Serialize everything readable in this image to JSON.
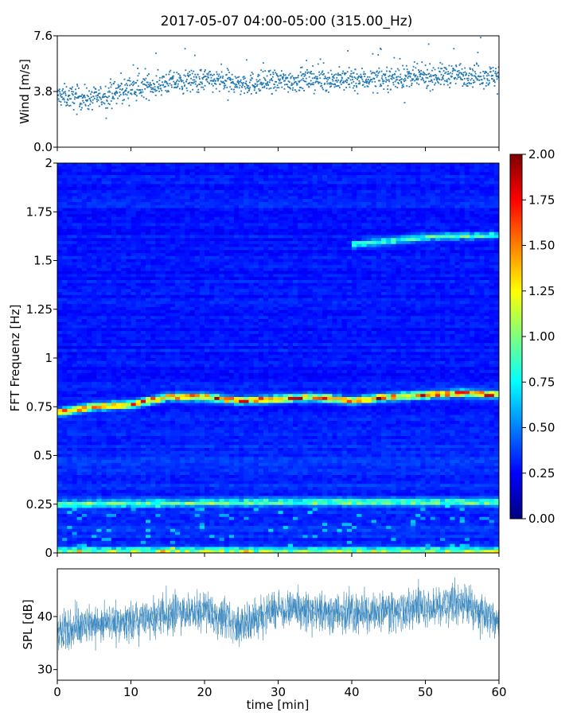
{
  "title": "2017-05-07 04:00-05:00 (315.00_Hz)",
  "chart_data": [
    {
      "id": "wind",
      "type": "scatter",
      "ylabel": "Wind [m/s]",
      "xlim": [
        0,
        60
      ],
      "ylim": [
        0,
        7.6
      ],
      "yticks": [
        0.0,
        3.8,
        7.6
      ],
      "ytick_labels": [
        "0.0",
        "3.8",
        "7.6"
      ],
      "color": "#1f77b4",
      "trend": [
        {
          "x": 0,
          "y": 3.5
        },
        {
          "x": 5,
          "y": 3.3
        },
        {
          "x": 10,
          "y": 4.0
        },
        {
          "x": 15,
          "y": 4.4
        },
        {
          "x": 20,
          "y": 4.6
        },
        {
          "x": 25,
          "y": 4.3
        },
        {
          "x": 30,
          "y": 4.5
        },
        {
          "x": 35,
          "y": 4.6
        },
        {
          "x": 40,
          "y": 4.6
        },
        {
          "x": 45,
          "y": 4.7
        },
        {
          "x": 50,
          "y": 4.8
        },
        {
          "x": 55,
          "y": 5.0
        },
        {
          "x": 60,
          "y": 4.8
        }
      ]
    },
    {
      "id": "spectrogram",
      "type": "heatmap",
      "ylabel": "FFT Frequenz [Hz]",
      "xlim": [
        0,
        60
      ],
      "ylim": [
        0,
        2
      ],
      "yticks": [
        0,
        0.25,
        0.5,
        0.75,
        1,
        1.25,
        1.5,
        1.75,
        2
      ],
      "ytick_labels": [
        "0",
        "0.25",
        "0.5",
        "0.75",
        "1",
        "1.25",
        "1.5",
        "1.75",
        "2"
      ],
      "colormap": "jet",
      "colorbar": {
        "range": [
          0,
          2.0
        ],
        "ticks": [
          0.0,
          0.25,
          0.5,
          0.75,
          1.0,
          1.25,
          1.5,
          1.75,
          2.0
        ],
        "tick_labels": [
          "0.00",
          "0.25",
          "0.50",
          "0.75",
          "1.00",
          "1.25",
          "1.50",
          "1.75",
          "2.00"
        ]
      },
      "ridges": [
        {
          "points": [
            {
              "x": 0,
              "y": 0.72
            },
            {
              "x": 5,
              "y": 0.75
            },
            {
              "x": 10,
              "y": 0.76
            },
            {
              "x": 15,
              "y": 0.8
            },
            {
              "x": 20,
              "y": 0.8
            },
            {
              "x": 25,
              "y": 0.78
            },
            {
              "x": 30,
              "y": 0.79
            },
            {
              "x": 35,
              "y": 0.8
            },
            {
              "x": 40,
              "y": 0.78
            },
            {
              "x": 45,
              "y": 0.8
            },
            {
              "x": 50,
              "y": 0.81
            },
            {
              "x": 55,
              "y": 0.82
            },
            {
              "x": 60,
              "y": 0.81
            }
          ],
          "intensity": 1.2
        },
        {
          "points": [
            {
              "x": 0,
              "y": 0.25
            },
            {
              "x": 30,
              "y": 0.26
            },
            {
              "x": 60,
              "y": 0.26
            }
          ],
          "intensity": 0.6
        },
        {
          "points": [
            {
              "x": 40,
              "y": 1.58
            },
            {
              "x": 50,
              "y": 1.62
            },
            {
              "x": 60,
              "y": 1.63
            }
          ],
          "intensity": 0.55
        },
        {
          "points": [
            {
              "x": 0,
              "y": 0.01
            },
            {
              "x": 60,
              "y": 0.01
            }
          ],
          "intensity": 0.7
        }
      ]
    },
    {
      "id": "spl",
      "type": "line",
      "ylabel": "SPL [dB]",
      "xlabel": "time [min]",
      "xlim": [
        0,
        60
      ],
      "ylim": [
        28,
        49
      ],
      "yticks": [
        30,
        40
      ],
      "ytick_labels": [
        "30",
        "40"
      ],
      "xticks": [
        0,
        10,
        20,
        30,
        40,
        50,
        60
      ],
      "xtick_labels": [
        "0",
        "10",
        "20",
        "30",
        "40",
        "50",
        "60"
      ],
      "color": "#1f77b4",
      "trend": [
        {
          "x": 0,
          "y": 37.5
        },
        {
          "x": 5,
          "y": 38.5
        },
        {
          "x": 10,
          "y": 39.0
        },
        {
          "x": 15,
          "y": 40.5
        },
        {
          "x": 20,
          "y": 41.0
        },
        {
          "x": 25,
          "y": 38.5
        },
        {
          "x": 30,
          "y": 41.5
        },
        {
          "x": 35,
          "y": 41.0
        },
        {
          "x": 40,
          "y": 40.5
        },
        {
          "x": 45,
          "y": 41.0
        },
        {
          "x": 50,
          "y": 42.0
        },
        {
          "x": 55,
          "y": 42.5
        },
        {
          "x": 60,
          "y": 39.0
        }
      ]
    }
  ]
}
